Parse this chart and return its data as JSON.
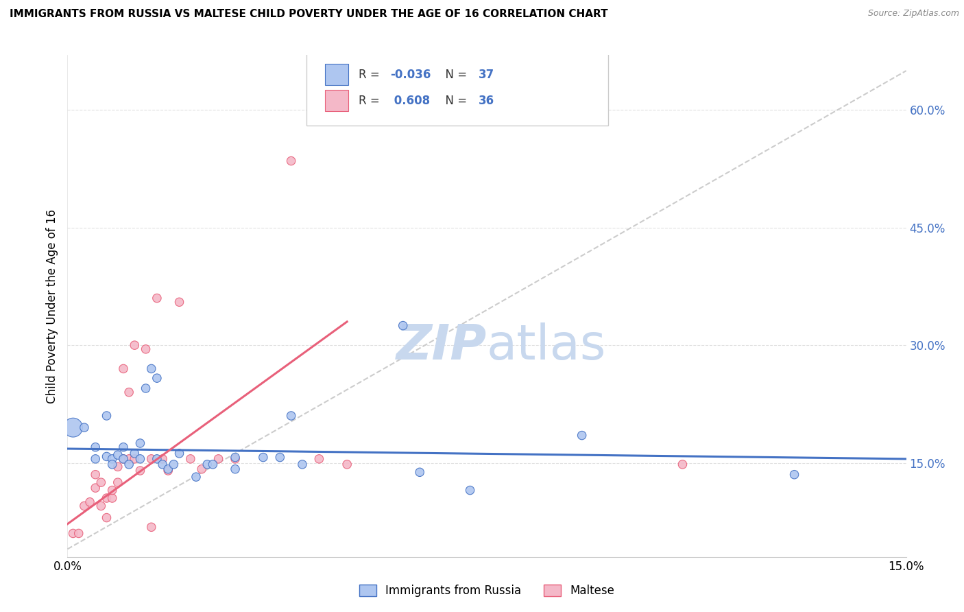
{
  "title": "IMMIGRANTS FROM RUSSIA VS MALTESE CHILD POVERTY UNDER THE AGE OF 16 CORRELATION CHART",
  "source": "Source: ZipAtlas.com",
  "ylabel": "Child Poverty Under the Age of 16",
  "ytick_labels": [
    "15.0%",
    "30.0%",
    "45.0%",
    "60.0%"
  ],
  "ytick_values": [
    0.15,
    0.3,
    0.45,
    0.6
  ],
  "xlim": [
    0.0,
    0.15
  ],
  "ylim": [
    0.03,
    0.67
  ],
  "russia_color": "#aec6f0",
  "maltese_color": "#f4b8c8",
  "russia_line_color": "#4472c4",
  "maltese_line_color": "#e8607a",
  "diagonal_color": "#cccccc",
  "watermark_zip": "ZIP",
  "watermark_atlas": "atlas",
  "russia_points": [
    [
      0.001,
      0.195
    ],
    [
      0.003,
      0.195
    ],
    [
      0.005,
      0.17
    ],
    [
      0.005,
      0.155
    ],
    [
      0.007,
      0.21
    ],
    [
      0.007,
      0.158
    ],
    [
      0.008,
      0.155
    ],
    [
      0.008,
      0.148
    ],
    [
      0.009,
      0.16
    ],
    [
      0.01,
      0.17
    ],
    [
      0.01,
      0.155
    ],
    [
      0.011,
      0.148
    ],
    [
      0.012,
      0.162
    ],
    [
      0.013,
      0.175
    ],
    [
      0.013,
      0.155
    ],
    [
      0.014,
      0.245
    ],
    [
      0.015,
      0.27
    ],
    [
      0.016,
      0.258
    ],
    [
      0.016,
      0.155
    ],
    [
      0.017,
      0.148
    ],
    [
      0.018,
      0.142
    ],
    [
      0.019,
      0.148
    ],
    [
      0.02,
      0.162
    ],
    [
      0.023,
      0.132
    ],
    [
      0.025,
      0.148
    ],
    [
      0.026,
      0.148
    ],
    [
      0.03,
      0.157
    ],
    [
      0.03,
      0.142
    ],
    [
      0.035,
      0.157
    ],
    [
      0.038,
      0.157
    ],
    [
      0.04,
      0.21
    ],
    [
      0.042,
      0.148
    ],
    [
      0.06,
      0.325
    ],
    [
      0.063,
      0.138
    ],
    [
      0.072,
      0.115
    ],
    [
      0.092,
      0.185
    ],
    [
      0.13,
      0.135
    ]
  ],
  "maltese_points": [
    [
      0.001,
      0.06
    ],
    [
      0.002,
      0.06
    ],
    [
      0.003,
      0.095
    ],
    [
      0.004,
      0.1
    ],
    [
      0.005,
      0.118
    ],
    [
      0.005,
      0.135
    ],
    [
      0.006,
      0.125
    ],
    [
      0.006,
      0.095
    ],
    [
      0.007,
      0.08
    ],
    [
      0.007,
      0.105
    ],
    [
      0.008,
      0.105
    ],
    [
      0.008,
      0.115
    ],
    [
      0.009,
      0.145
    ],
    [
      0.009,
      0.125
    ],
    [
      0.01,
      0.155
    ],
    [
      0.01,
      0.27
    ],
    [
      0.011,
      0.24
    ],
    [
      0.011,
      0.155
    ],
    [
      0.012,
      0.3
    ],
    [
      0.012,
      0.155
    ],
    [
      0.013,
      0.14
    ],
    [
      0.014,
      0.295
    ],
    [
      0.015,
      0.155
    ],
    [
      0.015,
      0.068
    ],
    [
      0.016,
      0.36
    ],
    [
      0.017,
      0.155
    ],
    [
      0.018,
      0.14
    ],
    [
      0.02,
      0.355
    ],
    [
      0.022,
      0.155
    ],
    [
      0.024,
      0.142
    ],
    [
      0.027,
      0.155
    ],
    [
      0.03,
      0.155
    ],
    [
      0.04,
      0.535
    ],
    [
      0.045,
      0.155
    ],
    [
      0.05,
      0.148
    ],
    [
      0.11,
      0.148
    ]
  ],
  "russia_sizes": [
    400,
    80,
    80,
    80,
    80,
    80,
    80,
    80,
    80,
    80,
    80,
    80,
    80,
    80,
    80,
    80,
    80,
    80,
    80,
    80,
    80,
    80,
    80,
    80,
    80,
    80,
    80,
    80,
    80,
    80,
    80,
    80,
    80,
    80,
    80,
    80,
    80
  ],
  "maltese_sizes": [
    80,
    80,
    80,
    80,
    80,
    80,
    80,
    80,
    80,
    80,
    80,
    80,
    80,
    80,
    80,
    80,
    80,
    80,
    80,
    80,
    80,
    80,
    80,
    80,
    80,
    80,
    80,
    80,
    80,
    80,
    80,
    80,
    80,
    80,
    80,
    80
  ]
}
